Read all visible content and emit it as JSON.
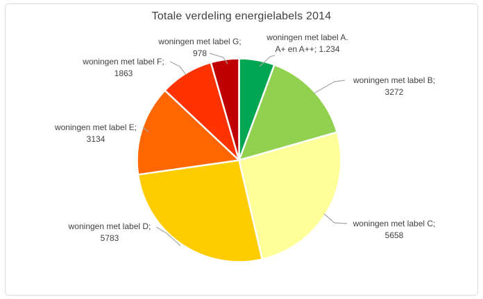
{
  "chart_data": {
    "type": "pie",
    "title": "Totale verdeling energielabels 2014",
    "total": 21922,
    "start_angle_deg": 0,
    "direction": "clockwise",
    "legend_position": "none",
    "separator_color": "#FFFFFF",
    "leader_line_color": "#A6A6A6",
    "frame_border_color": "#D9D9D9",
    "title_color": "#404040",
    "label_text_color": "#404040",
    "slices": [
      {
        "id": "a",
        "label_lines": [
          "woningen met label A.",
          "A+ en A++; 1.234"
        ],
        "name": "woningen met label A. A+ en A++",
        "value": 1234,
        "display_value": "1.234",
        "color": "#00A651"
      },
      {
        "id": "b",
        "label_lines": [
          "woningen met label B;",
          "3272"
        ],
        "name": "woningen met label B",
        "value": 3272,
        "display_value": "3272",
        "color": "#92D050"
      },
      {
        "id": "c",
        "label_lines": [
          "woningen met label C;",
          "5658"
        ],
        "name": "woningen met label C",
        "value": 5658,
        "display_value": "5658",
        "color": "#FFFF99"
      },
      {
        "id": "d",
        "label_lines": [
          "woningen met label D;",
          "5783"
        ],
        "name": "woningen met label D",
        "value": 5783,
        "display_value": "5783",
        "color": "#FFCC00"
      },
      {
        "id": "e",
        "label_lines": [
          "woningen met label E;",
          "3134"
        ],
        "name": "woningen met label E",
        "value": 3134,
        "display_value": "3134",
        "color": "#FF6600"
      },
      {
        "id": "f",
        "label_lines": [
          "woningen met label F;",
          "1863"
        ],
        "name": "woningen met label F",
        "value": 1863,
        "display_value": "1863",
        "color": "#FF3300"
      },
      {
        "id": "g",
        "label_lines": [
          "woningen met label G;",
          "978"
        ],
        "name": "woningen met label G",
        "value": 978,
        "display_value": "978",
        "color": "#C00000"
      }
    ]
  }
}
